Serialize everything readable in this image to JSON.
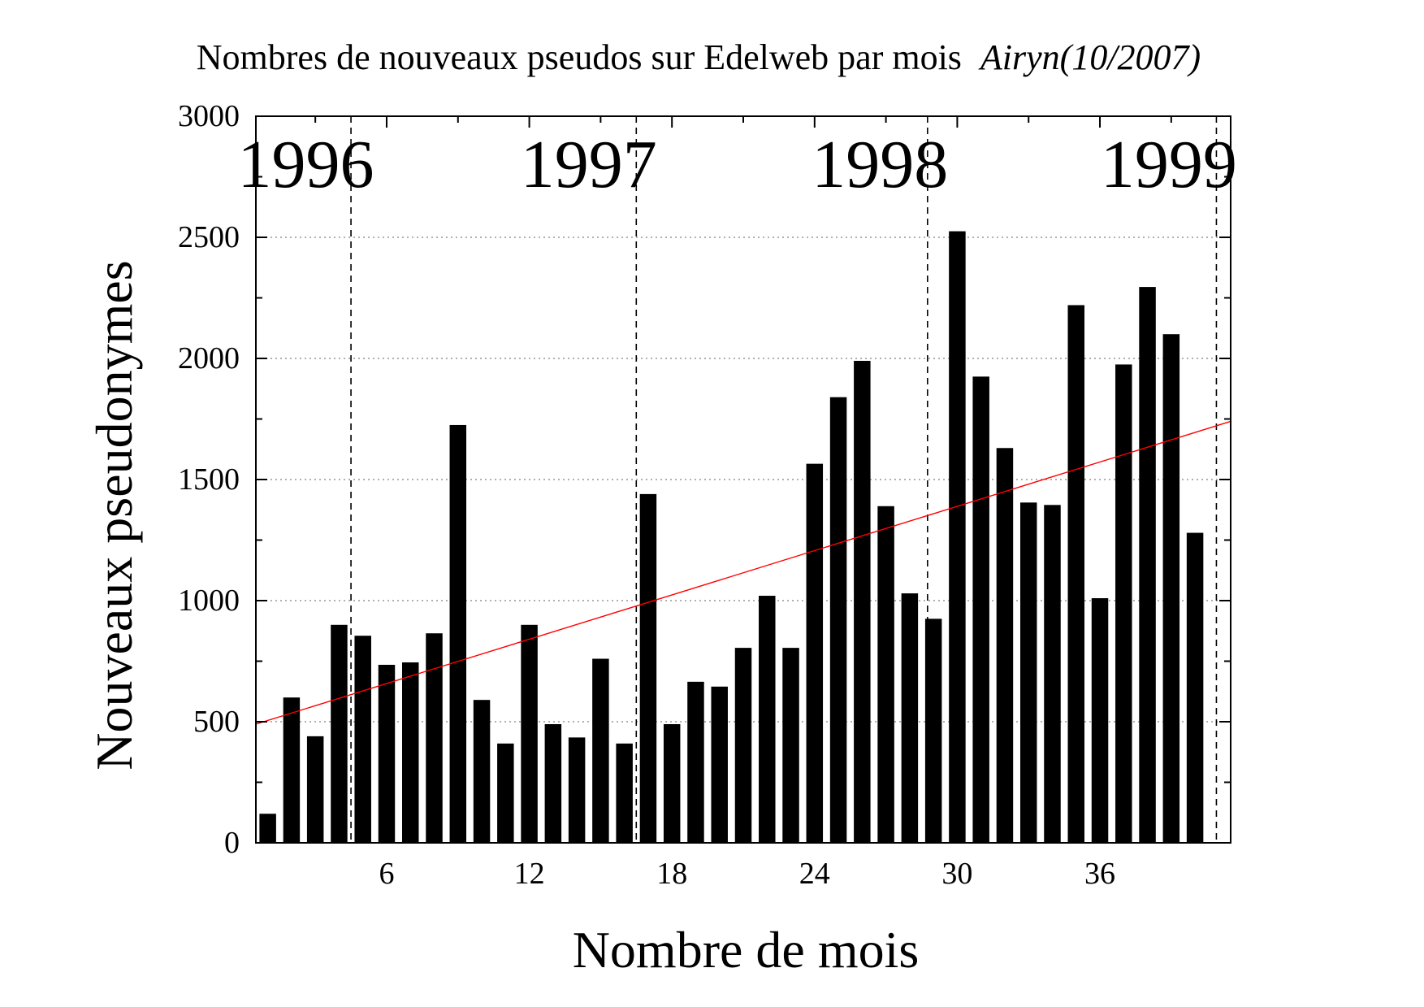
{
  "chart_data": {
    "type": "bar",
    "title": "Nombres de nouveaux pseudos sur Edelweb par mois",
    "title_author": "Airyn(10/2007)",
    "xlabel": "Nombre de mois",
    "ylabel": "Nouveaux pseudonymes",
    "xlim": [
      0.5,
      41.5
    ],
    "ylim": [
      0,
      3000
    ],
    "x_ticks": [
      6,
      12,
      18,
      24,
      30,
      36
    ],
    "y_ticks": [
      0,
      500,
      1000,
      1500,
      2000,
      2500,
      3000
    ],
    "grid": "horizontal dotted",
    "bar_color": "#000000",
    "x": [
      1,
      2,
      3,
      4,
      5,
      6,
      7,
      8,
      9,
      10,
      11,
      12,
      13,
      14,
      15,
      16,
      17,
      18,
      19,
      20,
      21,
      22,
      23,
      24,
      25,
      26,
      27,
      28,
      29,
      30,
      31,
      32,
      33,
      34,
      35,
      36,
      37,
      38,
      39,
      40
    ],
    "values": [
      120,
      600,
      440,
      900,
      855,
      735,
      745,
      865,
      1725,
      590,
      410,
      900,
      490,
      435,
      760,
      410,
      1440,
      490,
      665,
      645,
      805,
      1020,
      805,
      1565,
      1840,
      1990,
      1390,
      1030,
      925,
      2525,
      1925,
      1630,
      1405,
      1395,
      2220,
      1010,
      1975,
      2295,
      2100,
      1280
    ],
    "trendline": {
      "color": "#ff0000",
      "x": [
        0.5,
        41.5
      ],
      "y": [
        490,
        1740
      ]
    },
    "year_dividers": [
      {
        "label": "1996",
        "x": 4.5,
        "label_x": 2.6
      },
      {
        "label": "1997",
        "x": 16.5,
        "label_x": 14.5
      },
      {
        "label": "1998",
        "x": 28.75,
        "label_x": 26.75
      },
      {
        "label": "1999",
        "x": 40.9,
        "label_x": 38.9
      }
    ]
  }
}
